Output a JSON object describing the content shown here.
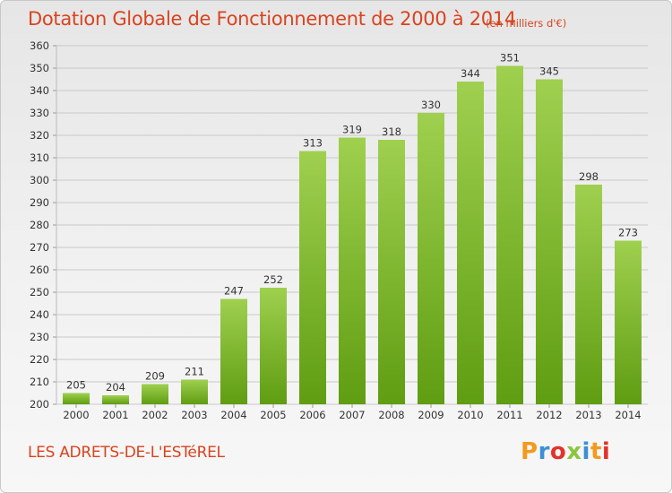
{
  "header": {
    "title": "Dotation Globale de Fonctionnement de 2000 à 2014",
    "unit": "(en milliers d'€)"
  },
  "footer": {
    "commune": "LES ADRETS-DE-L'ESTéREL",
    "brand_letters": [
      "P",
      "r",
      "o",
      "x",
      "i",
      "t",
      "i"
    ],
    "brand_colors": [
      "#f39a1e",
      "#3d8fd6",
      "#e4322b",
      "#8cc63f",
      "#3d8fd6",
      "#f39a1e",
      "#e4322b"
    ]
  },
  "colors": {
    "bar_top": "#9fd04f",
    "bar_bottom": "#5f9d12",
    "grid": "#c9c9c9",
    "axis_text": "#333333"
  },
  "chart_data": {
    "type": "bar",
    "categories": [
      "2000",
      "2001",
      "2002",
      "2003",
      "2004",
      "2005",
      "2006",
      "2007",
      "2008",
      "2009",
      "2010",
      "2011",
      "2012",
      "2013",
      "2014"
    ],
    "values": [
      205,
      204,
      209,
      211,
      247,
      252,
      313,
      319,
      318,
      330,
      344,
      351,
      345,
      298,
      273
    ],
    "title": "Dotation Globale de Fonctionnement de 2000 à 2014",
    "subtitle": "(en milliers d'€)",
    "ylim": [
      200,
      360
    ],
    "ytick_step": 10,
    "grid": true,
    "data_labels": true
  }
}
